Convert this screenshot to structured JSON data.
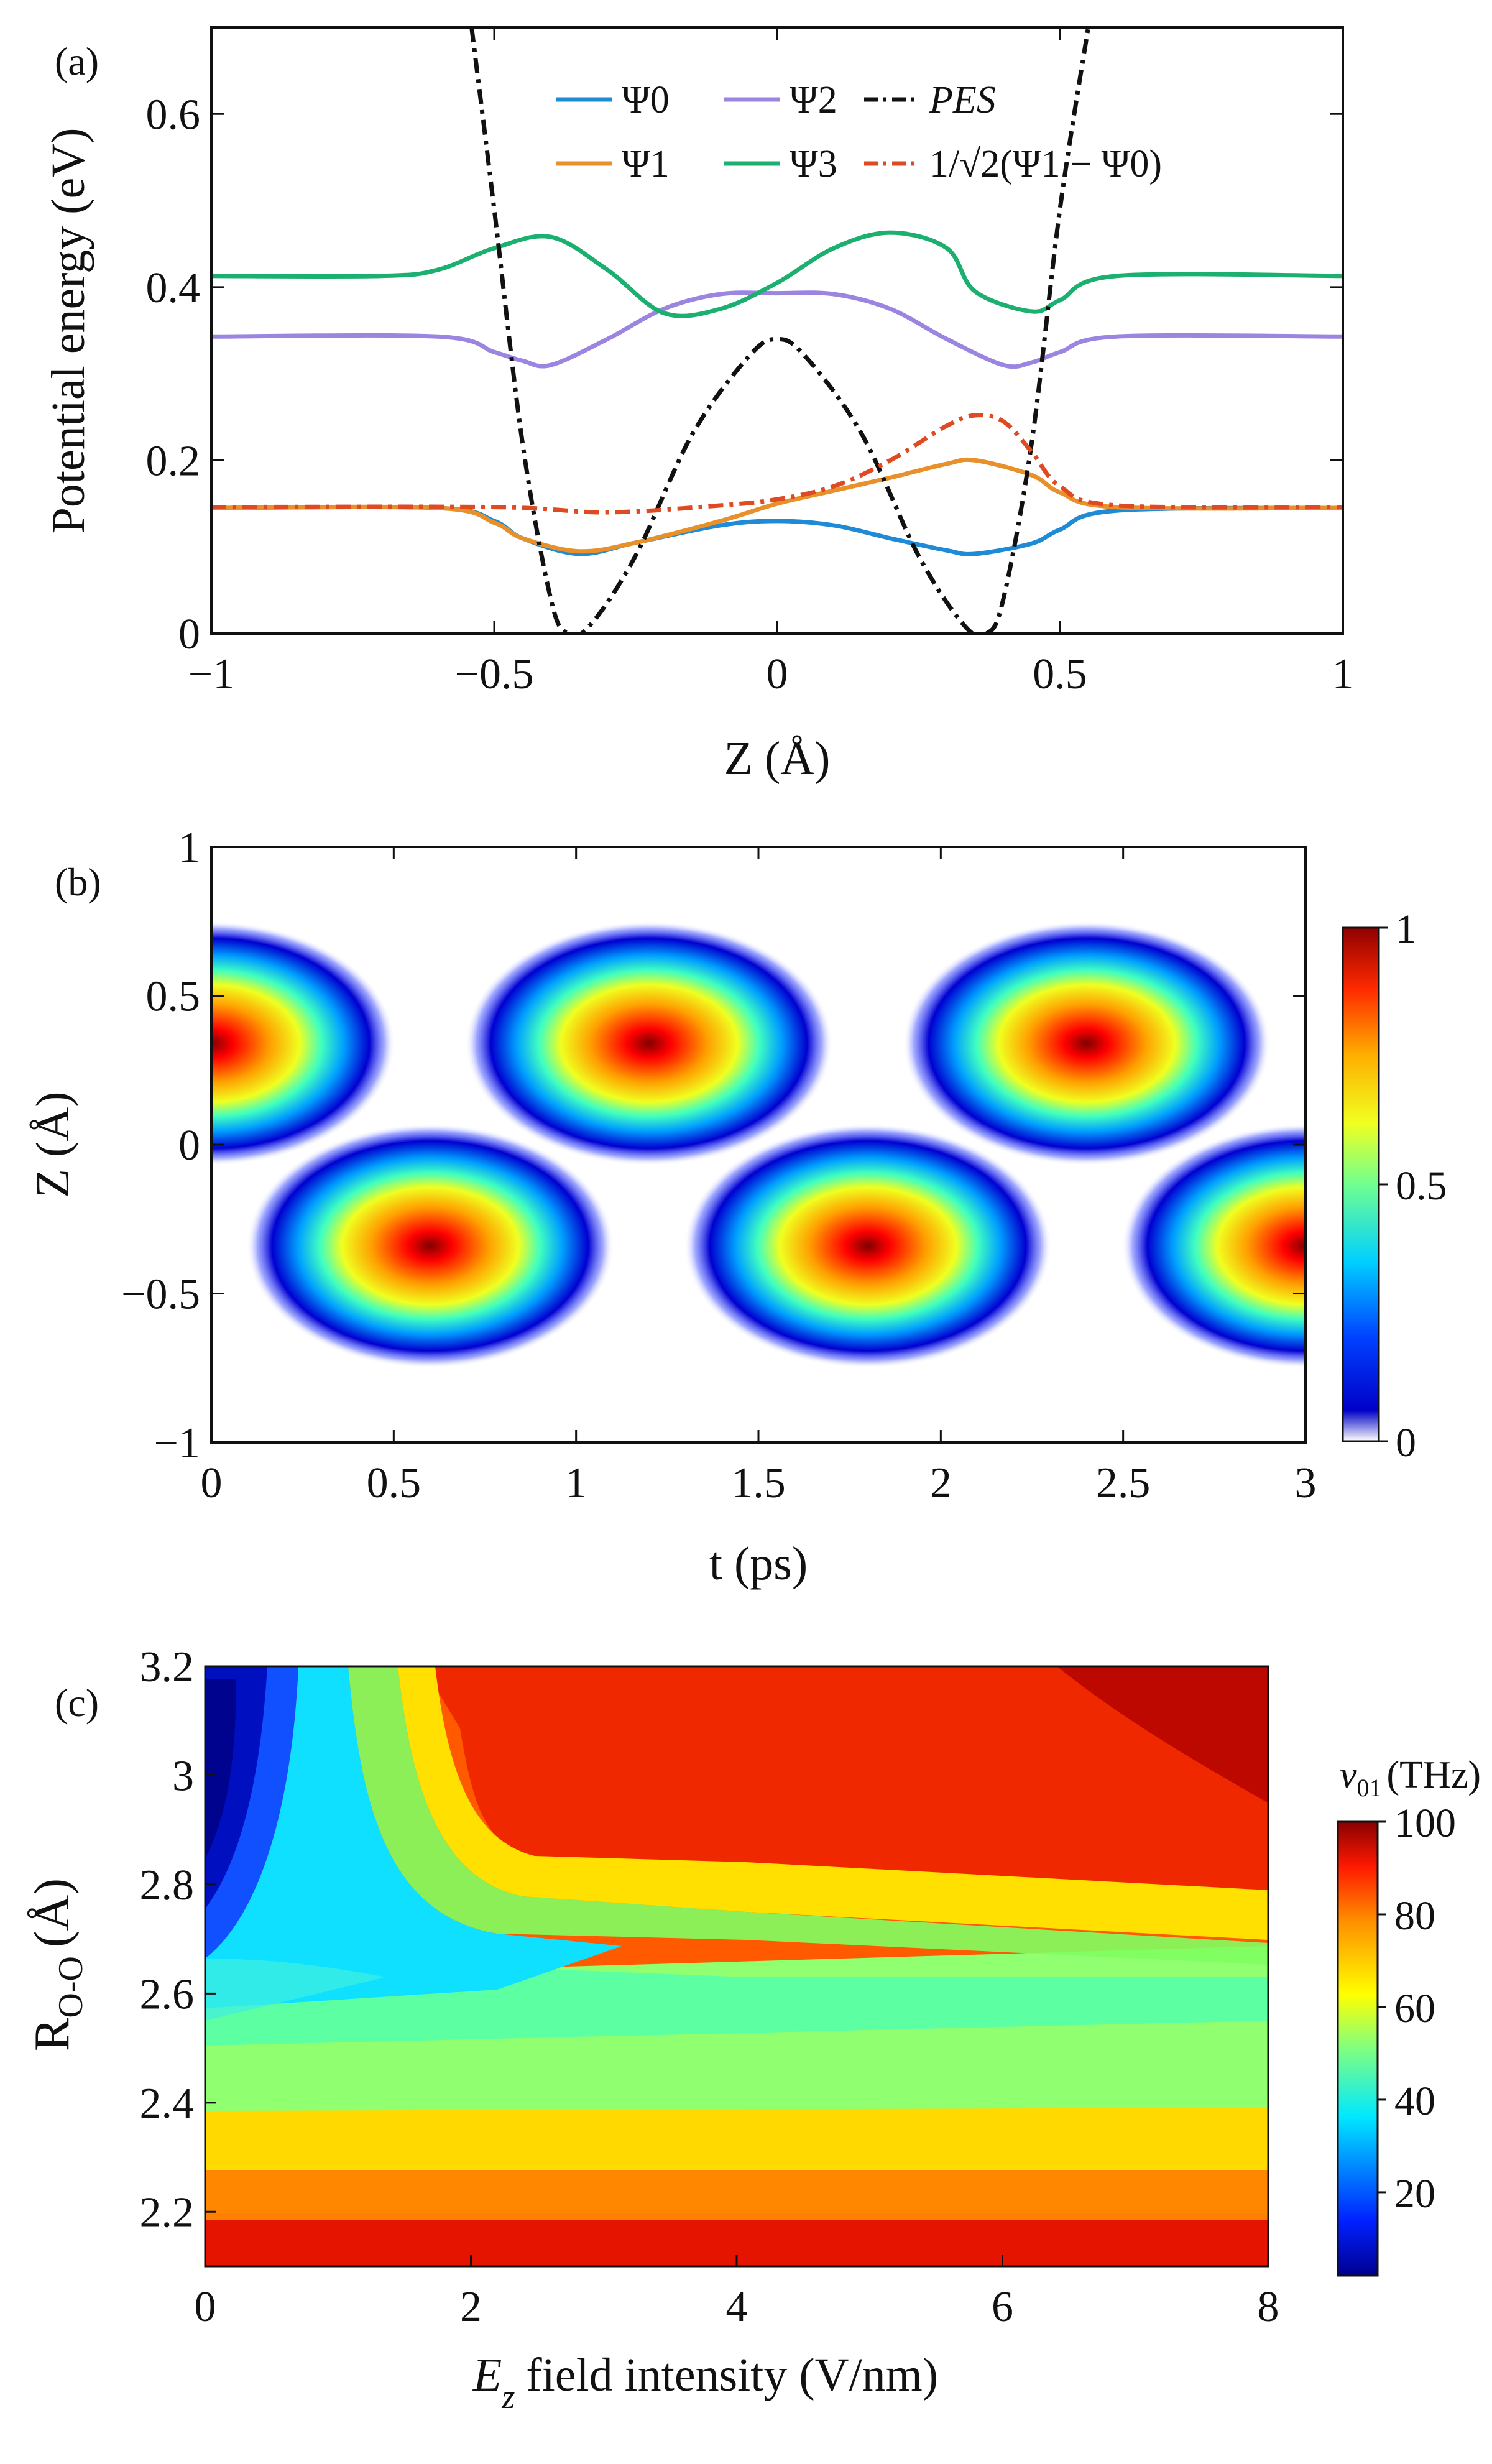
{
  "chart_data": [
    {
      "type": "line",
      "panel_label": "(a)",
      "xlabel": "Z (Å)",
      "ylabel": "Potential energy (eV)",
      "xlim": [
        -1,
        1
      ],
      "ylim": [
        0,
        0.7
      ],
      "xticks": [
        "−1",
        "−0.5",
        "0",
        "0.5",
        "1"
      ],
      "yticks": [
        "0",
        "0.2",
        "0.4",
        "0.6"
      ],
      "grid": false,
      "legend_position": "top-right",
      "series": [
        {
          "name": "Ψ0",
          "color": "#1f8bd6",
          "style": "solid",
          "x": [
            -1,
            -0.6,
            -0.5,
            -0.45,
            -0.35,
            -0.25,
            -0.1,
            0,
            0.1,
            0.2,
            0.3,
            0.35,
            0.45,
            0.5,
            0.6,
            1
          ],
          "y": [
            0.145,
            0.145,
            0.13,
            0.11,
            0.092,
            0.105,
            0.125,
            0.13,
            0.125,
            0.11,
            0.096,
            0.092,
            0.104,
            0.12,
            0.142,
            0.145
          ]
        },
        {
          "name": "Ψ1",
          "color": "#e8902a",
          "style": "solid",
          "x": [
            -1,
            -0.6,
            -0.5,
            -0.45,
            -0.35,
            -0.25,
            -0.1,
            0,
            0.1,
            0.2,
            0.3,
            0.35,
            0.45,
            0.5,
            0.6,
            1
          ],
          "y": [
            0.145,
            0.145,
            0.128,
            0.11,
            0.095,
            0.105,
            0.13,
            0.15,
            0.165,
            0.18,
            0.196,
            0.2,
            0.183,
            0.163,
            0.146,
            0.145
          ]
        },
        {
          "name": "Ψ2",
          "color": "#9b85e0",
          "style": "solid",
          "x": [
            -1,
            -0.6,
            -0.5,
            -0.45,
            -0.4,
            -0.3,
            -0.2,
            -0.1,
            0,
            0.1,
            0.2,
            0.3,
            0.4,
            0.45,
            0.5,
            0.6,
            1
          ],
          "y": [
            0.343,
            0.343,
            0.325,
            0.315,
            0.31,
            0.34,
            0.375,
            0.392,
            0.393,
            0.392,
            0.375,
            0.34,
            0.31,
            0.313,
            0.325,
            0.343,
            0.343
          ]
        },
        {
          "name": "Ψ3",
          "color": "#1cb070",
          "style": "solid",
          "x": [
            -1,
            -0.7,
            -0.6,
            -0.5,
            -0.4,
            -0.3,
            -0.2,
            -0.1,
            0,
            0.1,
            0.2,
            0.3,
            0.35,
            0.45,
            0.5,
            0.6,
            1
          ],
          "y": [
            0.413,
            0.413,
            0.42,
            0.445,
            0.458,
            0.42,
            0.37,
            0.375,
            0.405,
            0.445,
            0.463,
            0.445,
            0.395,
            0.372,
            0.385,
            0.413,
            0.413
          ]
        },
        {
          "name": "PES",
          "color": "#111111",
          "style": "dashdot",
          "x": [
            -0.54,
            -0.5,
            -0.45,
            -0.4,
            -0.37,
            -0.33,
            -0.25,
            -0.15,
            -0.05,
            0,
            0.05,
            0.15,
            0.25,
            0.33,
            0.37,
            0.4,
            0.45,
            0.5,
            0.55
          ],
          "y": [
            0.7,
            0.49,
            0.22,
            0.04,
            0,
            0.01,
            0.09,
            0.23,
            0.32,
            0.34,
            0.32,
            0.23,
            0.09,
            0.01,
            0,
            0.04,
            0.22,
            0.49,
            0.7
          ]
        },
        {
          "name": "1/√2(Ψ1 − Ψ0)",
          "color": "#e04a22",
          "style": "dashdot",
          "x": [
            -1,
            -0.5,
            -0.3,
            -0.1,
            0,
            0.1,
            0.2,
            0.3,
            0.35,
            0.4,
            0.45,
            0.5,
            0.6,
            1
          ],
          "y": [
            0.146,
            0.146,
            0.14,
            0.148,
            0.155,
            0.17,
            0.2,
            0.24,
            0.252,
            0.245,
            0.21,
            0.17,
            0.148,
            0.146
          ]
        }
      ]
    },
    {
      "type": "heatmap",
      "panel_label": "(b)",
      "xlabel": "t (ps)",
      "ylabel": "Z (Å)",
      "xlim": [
        0,
        3
      ],
      "ylim": [
        -1,
        1
      ],
      "xticks": [
        "0",
        "0.5",
        "1",
        "1.5",
        "2",
        "2.5",
        "3"
      ],
      "yticks": [
        "−1",
        "−0.5",
        "0",
        "0.5",
        "1"
      ],
      "colorbar": {
        "min": 0,
        "max": 1,
        "ticks": [
          "0",
          "0.5",
          "1"
        ],
        "colormap": "jet"
      },
      "blobs": [
        {
          "t": 0.0,
          "z": 0.34
        },
        {
          "t": 1.2,
          "z": 0.34
        },
        {
          "t": 2.4,
          "z": 0.34
        },
        {
          "t": 0.6,
          "z": -0.34
        },
        {
          "t": 1.8,
          "z": -0.34
        },
        {
          "t": 3.0,
          "z": -0.34
        }
      ],
      "period_ps": 1.2
    },
    {
      "type": "heatmap",
      "panel_label": "(c)",
      "xlabel": "field intensity (V/nm)",
      "xlabel_symbol": "E",
      "xlabel_subscript": "z",
      "ylabel": "R",
      "ylabel_subscript": "O-O",
      "ylabel_unit": "(Å)",
      "xlim": [
        0,
        8
      ],
      "ylim": [
        2.1,
        3.2
      ],
      "xticks": [
        "0",
        "2",
        "4",
        "6",
        "8"
      ],
      "yticks": [
        "2.2",
        "2.4",
        "2.6",
        "2.8",
        "3",
        "3.2"
      ],
      "colorbar": {
        "title_symbol": "v",
        "title_subscript": "01",
        "title_unit": "(THz)",
        "min": 2,
        "max": 100,
        "ticks": [
          "20",
          "40",
          "60",
          "80",
          "100"
        ],
        "colormap": "jet"
      }
    }
  ]
}
